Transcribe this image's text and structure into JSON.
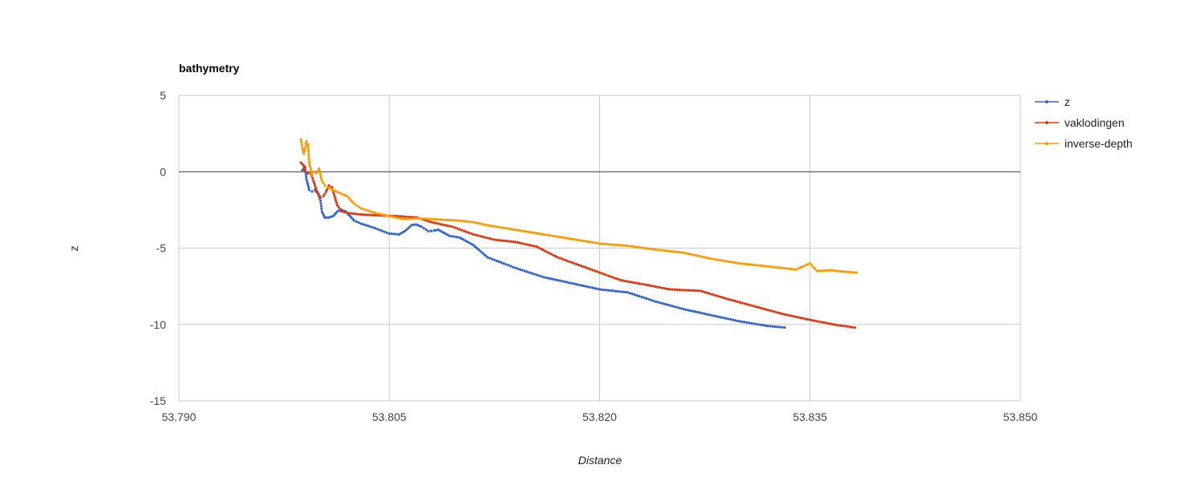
{
  "chart_data": {
    "type": "scatter",
    "title": "bathymetry",
    "xlabel": "Distance",
    "ylabel": "z",
    "xlim": [
      53.79,
      53.85
    ],
    "ylim": [
      -15,
      5
    ],
    "xticks": [
      "53.790",
      "53.805",
      "53.820",
      "53.835",
      "53.850"
    ],
    "yticks": [
      "5",
      "0",
      "-5",
      "-10",
      "-15"
    ],
    "grid": true,
    "legend_position": "right",
    "series": [
      {
        "name": "z",
        "color": "#3366cc",
        "points": [
          [
            53.7988,
            0.1
          ],
          [
            53.799,
            0.3
          ],
          [
            53.7991,
            -0.5
          ],
          [
            53.7993,
            -1.2
          ],
          [
            53.7995,
            -1.3
          ],
          [
            53.7997,
            -1.2
          ],
          [
            53.7999,
            -1.4
          ],
          [
            53.8001,
            -1.9
          ],
          [
            53.8002,
            -2.6
          ],
          [
            53.8004,
            -3.0
          ],
          [
            53.8007,
            -3.0
          ],
          [
            53.801,
            -2.9
          ],
          [
            53.8013,
            -2.6
          ],
          [
            53.8016,
            -2.5
          ],
          [
            53.8019,
            -2.6
          ],
          [
            53.8022,
            -2.9
          ],
          [
            53.8025,
            -3.2
          ],
          [
            53.803,
            -3.4
          ],
          [
            53.804,
            -3.7
          ],
          [
            53.805,
            -4.05
          ],
          [
            53.8057,
            -4.1
          ],
          [
            53.8061,
            -3.9
          ],
          [
            53.8066,
            -3.5
          ],
          [
            53.8069,
            -3.45
          ],
          [
            53.8073,
            -3.6
          ],
          [
            53.8078,
            -3.9
          ],
          [
            53.8082,
            -3.85
          ],
          [
            53.8085,
            -3.8
          ],
          [
            53.8089,
            -4.0
          ],
          [
            53.8093,
            -4.2
          ],
          [
            53.81,
            -4.3
          ],
          [
            53.811,
            -4.8
          ],
          [
            53.812,
            -5.6
          ],
          [
            53.814,
            -6.3
          ],
          [
            53.816,
            -6.9
          ],
          [
            53.818,
            -7.3
          ],
          [
            53.82,
            -7.7
          ],
          [
            53.822,
            -7.9
          ],
          [
            53.824,
            -8.5
          ],
          [
            53.826,
            -9.0
          ],
          [
            53.828,
            -9.4
          ],
          [
            53.83,
            -9.8
          ],
          [
            53.832,
            -10.1
          ],
          [
            53.8332,
            -10.2
          ]
        ]
      },
      {
        "name": "vaklodingen",
        "color": "#dc3912",
        "points": [
          [
            53.7987,
            0.6
          ],
          [
            53.7989,
            0.4
          ],
          [
            53.799,
            0.0
          ],
          [
            53.7992,
            -0.1
          ],
          [
            53.7994,
            -0.1
          ],
          [
            53.7996,
            -0.6
          ],
          [
            53.7998,
            -1.2
          ],
          [
            53.8001,
            -1.7
          ],
          [
            53.8003,
            -1.6
          ],
          [
            53.8005,
            -1.3
          ],
          [
            53.8007,
            -0.9
          ],
          [
            53.8009,
            -1.0
          ],
          [
            53.8011,
            -1.6
          ],
          [
            53.8013,
            -2.2
          ],
          [
            53.8016,
            -2.6
          ],
          [
            53.802,
            -2.7
          ],
          [
            53.803,
            -2.8
          ],
          [
            53.804,
            -2.85
          ],
          [
            53.8055,
            -2.9
          ],
          [
            53.807,
            -3.0
          ],
          [
            53.808,
            -3.3
          ],
          [
            53.8095,
            -3.6
          ],
          [
            53.811,
            -4.1
          ],
          [
            53.8125,
            -4.45
          ],
          [
            53.814,
            -4.6
          ],
          [
            53.8155,
            -4.9
          ],
          [
            53.817,
            -5.6
          ],
          [
            53.8185,
            -6.1
          ],
          [
            53.82,
            -6.6
          ],
          [
            53.8215,
            -7.1
          ],
          [
            53.823,
            -7.35
          ],
          [
            53.825,
            -7.7
          ],
          [
            53.8272,
            -7.8
          ],
          [
            53.829,
            -8.3
          ],
          [
            53.831,
            -8.8
          ],
          [
            53.833,
            -9.3
          ],
          [
            53.835,
            -9.7
          ],
          [
            53.837,
            -10.05
          ],
          [
            53.8382,
            -10.2
          ]
        ]
      },
      {
        "name": "inverse-depth",
        "color": "#ff9900",
        "points": [
          [
            53.7987,
            2.1
          ],
          [
            53.7988,
            1.6
          ],
          [
            53.7989,
            1.2
          ],
          [
            53.799,
            1.5
          ],
          [
            53.7991,
            2.0
          ],
          [
            53.7992,
            1.8
          ],
          [
            53.7993,
            0.5
          ],
          [
            53.7994,
            0.2
          ],
          [
            53.7995,
            -0.2
          ],
          [
            53.7996,
            0.0
          ],
          [
            53.7998,
            -0.1
          ],
          [
            53.8,
            0.2
          ],
          [
            53.8002,
            -0.6
          ],
          [
            53.8004,
            -0.9
          ],
          [
            53.8006,
            -1.0
          ],
          [
            53.801,
            -1.2
          ],
          [
            53.8015,
            -1.4
          ],
          [
            53.802,
            -1.6
          ],
          [
            53.8025,
            -2.1
          ],
          [
            53.803,
            -2.4
          ],
          [
            53.804,
            -2.7
          ],
          [
            53.805,
            -2.9
          ],
          [
            53.806,
            -3.1
          ],
          [
            53.807,
            -3.05
          ],
          [
            53.808,
            -3.1
          ],
          [
            53.809,
            -3.15
          ],
          [
            53.81,
            -3.2
          ],
          [
            53.811,
            -3.3
          ],
          [
            53.812,
            -3.5
          ],
          [
            53.814,
            -3.8
          ],
          [
            53.816,
            -4.1
          ],
          [
            53.818,
            -4.4
          ],
          [
            53.82,
            -4.7
          ],
          [
            53.822,
            -4.85
          ],
          [
            53.824,
            -5.1
          ],
          [
            53.826,
            -5.3
          ],
          [
            53.828,
            -5.7
          ],
          [
            53.83,
            -6.0
          ],
          [
            53.832,
            -6.2
          ],
          [
            53.834,
            -6.4
          ],
          [
            53.835,
            -6.0
          ],
          [
            53.8355,
            -6.5
          ],
          [
            53.8365,
            -6.45
          ],
          [
            53.8375,
            -6.55
          ],
          [
            53.8383,
            -6.6
          ]
        ]
      }
    ]
  }
}
